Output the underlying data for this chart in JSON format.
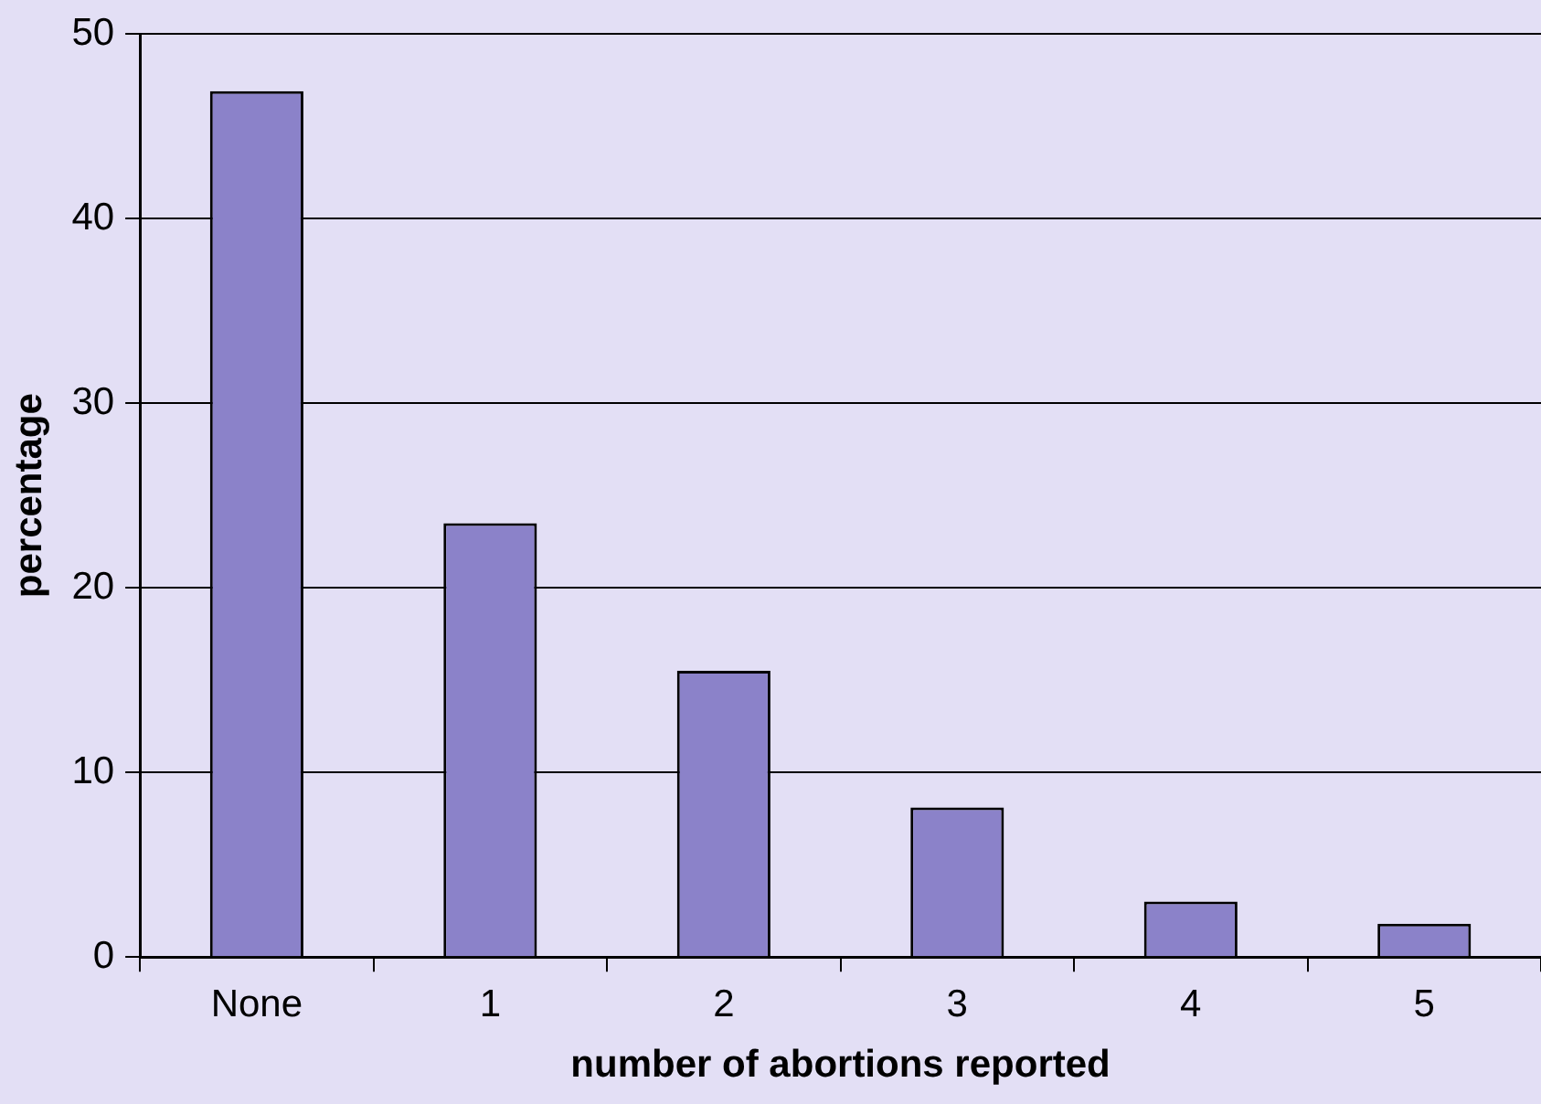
{
  "chart_data": {
    "type": "bar",
    "xlabel": "number of abortions reported",
    "ylabel": "percentage",
    "categories": [
      "None",
      "1",
      "2",
      "3",
      "4",
      "5"
    ],
    "values": [
      46.9,
      23.5,
      15.5,
      8.1,
      3.0,
      1.8
    ],
    "color": "#8b82c9",
    "ylim": [
      0,
      50
    ],
    "yticks": [
      0,
      10,
      20,
      30,
      40,
      50
    ],
    "grid": "y"
  }
}
